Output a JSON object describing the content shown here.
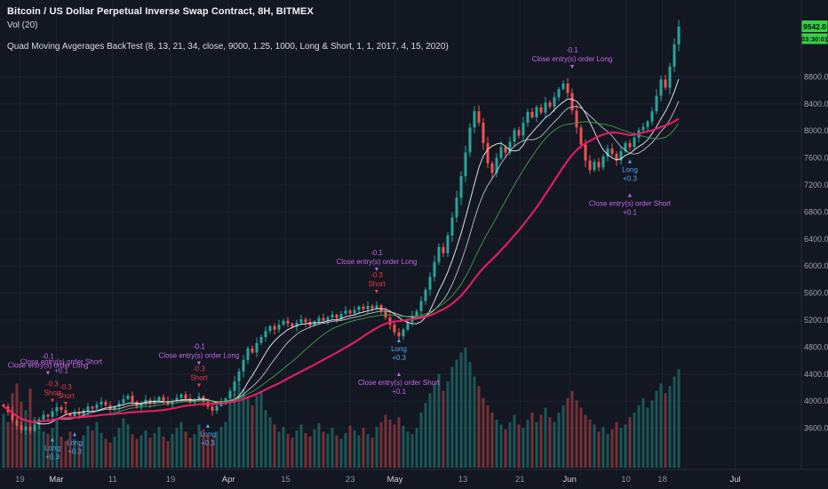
{
  "header": {
    "symbol_title": "Bitcoin / US Dollar Perpetual Inverse Swap Contract, 8H, BITMEX",
    "vol_label": "Vol (20)",
    "study_label": "Quad Moving Avgerages BackTest (8, 13, 21, 34, close, 9000, 1.25, 1000, Long & Short, 1, 1, 2017, 4, 15, 2020)"
  },
  "price_axis": {
    "last_price": "9542.0",
    "countdown": "03:30:01",
    "tick_labels": [
      "8800.0",
      "8400.0",
      "8000.0",
      "7600.0",
      "7200.0",
      "6800.0",
      "6400.0",
      "6000.0",
      "5600.0",
      "5200.0",
      "4800.0",
      "4400.0",
      "4000.0",
      "3600.0"
    ]
  },
  "colors": {
    "background": "#131722",
    "grid": "#1d2230",
    "axis_border": "#2a2e39",
    "axis_text": "#9ba0ab",
    "time_month_text": "#ccd1da",
    "time_day_text": "#8a909e",
    "candle_up": "#26a69a",
    "candle_down": "#ef5350",
    "volume_up": "rgba(38,166,154,0.45)",
    "volume_down": "rgba(239,83,80,0.45)",
    "ma_colors": [
      "#f2f4f7",
      "#bdc4ca",
      "#43a047",
      "#e91e63"
    ],
    "badge_bg": "#36d344",
    "badge_text": "#0b0e14",
    "annotation_purple": "#c168e4",
    "annotation_red": "#f23645",
    "annotation_blue": "#4ba5f5"
  },
  "chart_data": {
    "type": "candlestick",
    "title": "Bitcoin / US Dollar Perpetual Inverse Swap Contract, 8H, BITMEX",
    "ylim": [
      3400,
      9700
    ],
    "ma_periods": [
      8,
      13,
      21,
      34
    ],
    "price_ticks": [
      8800,
      8400,
      8000,
      7600,
      7200,
      6800,
      6400,
      6000,
      5600,
      5200,
      4800,
      4400,
      4000,
      3600
    ],
    "time_ticks": [
      {
        "label": "19",
        "x": 0.024
      },
      {
        "label": "Mar",
        "x": 0.068
      },
      {
        "label": "11",
        "x": 0.136
      },
      {
        "label": "19",
        "x": 0.206
      },
      {
        "label": "Apr",
        "x": 0.276
      },
      {
        "label": "15",
        "x": 0.345
      },
      {
        "label": "23",
        "x": 0.423
      },
      {
        "label": "May",
        "x": 0.477
      },
      {
        "label": "13",
        "x": 0.559
      },
      {
        "label": "21",
        "x": 0.628
      },
      {
        "label": "Jun",
        "x": 0.688
      },
      {
        "label": "10",
        "x": 0.756
      },
      {
        "label": "18",
        "x": 0.8
      },
      {
        "label": "Jul",
        "x": 0.888
      }
    ],
    "closes": [
      3920,
      3840,
      3720,
      3640,
      3570,
      3620,
      3560,
      3650,
      3730,
      3800,
      3770,
      3850,
      3910,
      3870,
      3820,
      3780,
      3840,
      3800,
      3860,
      3920,
      3890,
      3950,
      3990,
      3940,
      3880,
      3920,
      3970,
      4030,
      4080,
      3990,
      3920,
      3960,
      4020,
      3970,
      4010,
      4060,
      4000,
      3950,
      4000,
      4050,
      4100,
      4040,
      3980,
      4020,
      4070,
      3990,
      3920,
      3860,
      3930,
      3990,
      4040,
      4150,
      4290,
      4440,
      4610,
      4780,
      4720,
      4860,
      4950,
      5040,
      5110,
      5060,
      5130,
      5190,
      5150,
      5100,
      5160,
      5210,
      5170,
      5120,
      5180,
      5230,
      5190,
      5240,
      5280,
      5230,
      5290,
      5340,
      5300,
      5350,
      5400,
      5360,
      5410,
      5370,
      5420,
      5340,
      5240,
      5130,
      5020,
      4960,
      5060,
      5170,
      5260,
      5330,
      5480,
      5650,
      5840,
      6060,
      6280,
      6190,
      6450,
      6720,
      7010,
      7330,
      7680,
      8050,
      8290,
      8120,
      7820,
      7520,
      7380,
      7600,
      7760,
      7680,
      7840,
      8010,
      7930,
      8120,
      8280,
      8200,
      8350,
      8270,
      8420,
      8360,
      8500,
      8620,
      8700,
      8560,
      8300,
      8050,
      7800,
      7560,
      7420,
      7540,
      7460,
      7620,
      7740,
      7660,
      7560,
      7700,
      7820,
      7760,
      7900,
      8010,
      8060,
      8140,
      8290,
      8520,
      8760,
      8640,
      8950,
      9280,
      9542
    ],
    "volumes": [
      45,
      38,
      62,
      70,
      55,
      48,
      66,
      42,
      35,
      30,
      28,
      33,
      40,
      26,
      22,
      30,
      24,
      20,
      27,
      35,
      31,
      38,
      29,
      24,
      21,
      26,
      33,
      41,
      36,
      28,
      24,
      27,
      31,
      25,
      29,
      34,
      26,
      22,
      28,
      33,
      38,
      30,
      25,
      28,
      36,
      32,
      27,
      24,
      30,
      34,
      38,
      55,
      62,
      70,
      66,
      58,
      52,
      60,
      64,
      48,
      42,
      36,
      30,
      34,
      28,
      25,
      31,
      36,
      29,
      26,
      32,
      37,
      30,
      28,
      33,
      27,
      24,
      29,
      35,
      31,
      27,
      33,
      28,
      25,
      34,
      38,
      44,
      40,
      36,
      42,
      35,
      30,
      28,
      33,
      46,
      54,
      62,
      70,
      78,
      64,
      72,
      84,
      90,
      96,
      100,
      88,
      76,
      68,
      58,
      52,
      46,
      40,
      36,
      32,
      38,
      44,
      36,
      33,
      40,
      46,
      38,
      44,
      50,
      42,
      38,
      46,
      52,
      58,
      64,
      56,
      50,
      44,
      40,
      36,
      30,
      34,
      28,
      32,
      38,
      33,
      36,
      42,
      46,
      52,
      58,
      50,
      56,
      64,
      70,
      62,
      68,
      76,
      82
    ],
    "annotations": [
      {
        "bar": 10,
        "price": 4420,
        "side": "above",
        "color": "purple",
        "lines": [
          "-0.1",
          "Close entry(s) order Long"
        ],
        "arrow": true
      },
      {
        "bar": 13,
        "price": 4340,
        "side": "above",
        "color": "purple",
        "lines": [
          "Close entry(s) order Short",
          "+0.1"
        ],
        "arrow": false
      },
      {
        "bar": 11,
        "price": 4010,
        "side": "above",
        "color": "red",
        "lines": [
          "-0.3",
          "Short"
        ],
        "arrow": true
      },
      {
        "bar": 14,
        "price": 3960,
        "side": "above",
        "color": "red",
        "lines": [
          "-0.3",
          "Short"
        ],
        "arrow": true
      },
      {
        "bar": 11,
        "price": 3480,
        "side": "below",
        "color": "blue",
        "lines": [
          "Long",
          "+0.3"
        ],
        "arrow": true
      },
      {
        "bar": 16,
        "price": 3560,
        "side": "below",
        "color": "blue",
        "lines": [
          "Long",
          "+0.3"
        ],
        "arrow": true
      },
      {
        "bar": 44,
        "price": 4560,
        "side": "above",
        "color": "purple",
        "lines": [
          "-0.1",
          "Close entry(s) order Long"
        ],
        "arrow": true
      },
      {
        "bar": 44,
        "price": 4230,
        "side": "above",
        "color": "red",
        "lines": [
          "-0.3",
          "Short"
        ],
        "arrow": true
      },
      {
        "bar": 46,
        "price": 3690,
        "side": "below",
        "color": "blue",
        "lines": [
          "Long",
          "+0.3"
        ],
        "arrow": true
      },
      {
        "bar": 84,
        "price": 5950,
        "side": "above",
        "color": "purple",
        "lines": [
          "-0.1",
          "Close entry(s) order Long"
        ],
        "arrow": true
      },
      {
        "bar": 84,
        "price": 5620,
        "side": "above",
        "color": "red",
        "lines": [
          "-0.3",
          "Short"
        ],
        "arrow": true
      },
      {
        "bar": 89,
        "price": 4950,
        "side": "below",
        "color": "blue",
        "lines": [
          "Long",
          "+0.3"
        ],
        "arrow": true
      },
      {
        "bar": 89,
        "price": 4450,
        "side": "below",
        "color": "purple",
        "lines": [
          "Close entry(s) order Short",
          "+0.1"
        ],
        "arrow": true
      },
      {
        "bar": 128,
        "price": 8950,
        "side": "above",
        "color": "purple",
        "lines": [
          "-0.1",
          "Close entry(s) order Long"
        ],
        "arrow": true
      },
      {
        "bar": 141,
        "price": 7600,
        "side": "below",
        "color": "blue",
        "lines": [
          "Long",
          "+0.3"
        ],
        "arrow": true
      },
      {
        "bar": 141,
        "price": 7100,
        "side": "below",
        "color": "purple",
        "lines": [
          "Close entry(s) order Short",
          "+0.1"
        ],
        "arrow": true
      }
    ]
  }
}
